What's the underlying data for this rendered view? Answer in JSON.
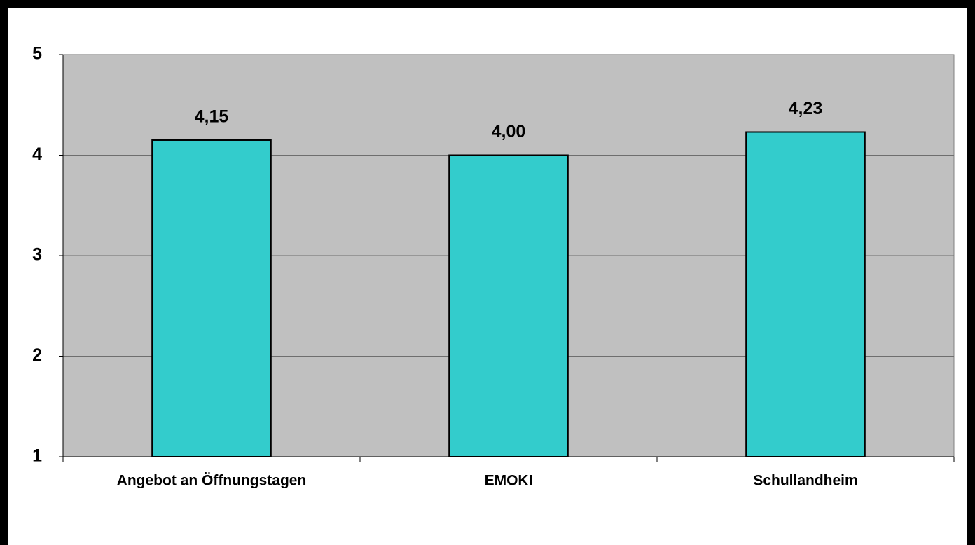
{
  "chart_data": {
    "type": "bar",
    "categories": [
      "Angebot an Öffnungstagen",
      "EMOKI",
      "Schullandheim"
    ],
    "values": [
      4.15,
      4.0,
      4.23
    ],
    "value_labels": [
      "4,15",
      "4,00",
      "4,23"
    ],
    "color": "#33cccc",
    "ylim": [
      1,
      5
    ],
    "yticks": [
      1,
      2,
      3,
      4,
      5
    ],
    "grid": true
  }
}
